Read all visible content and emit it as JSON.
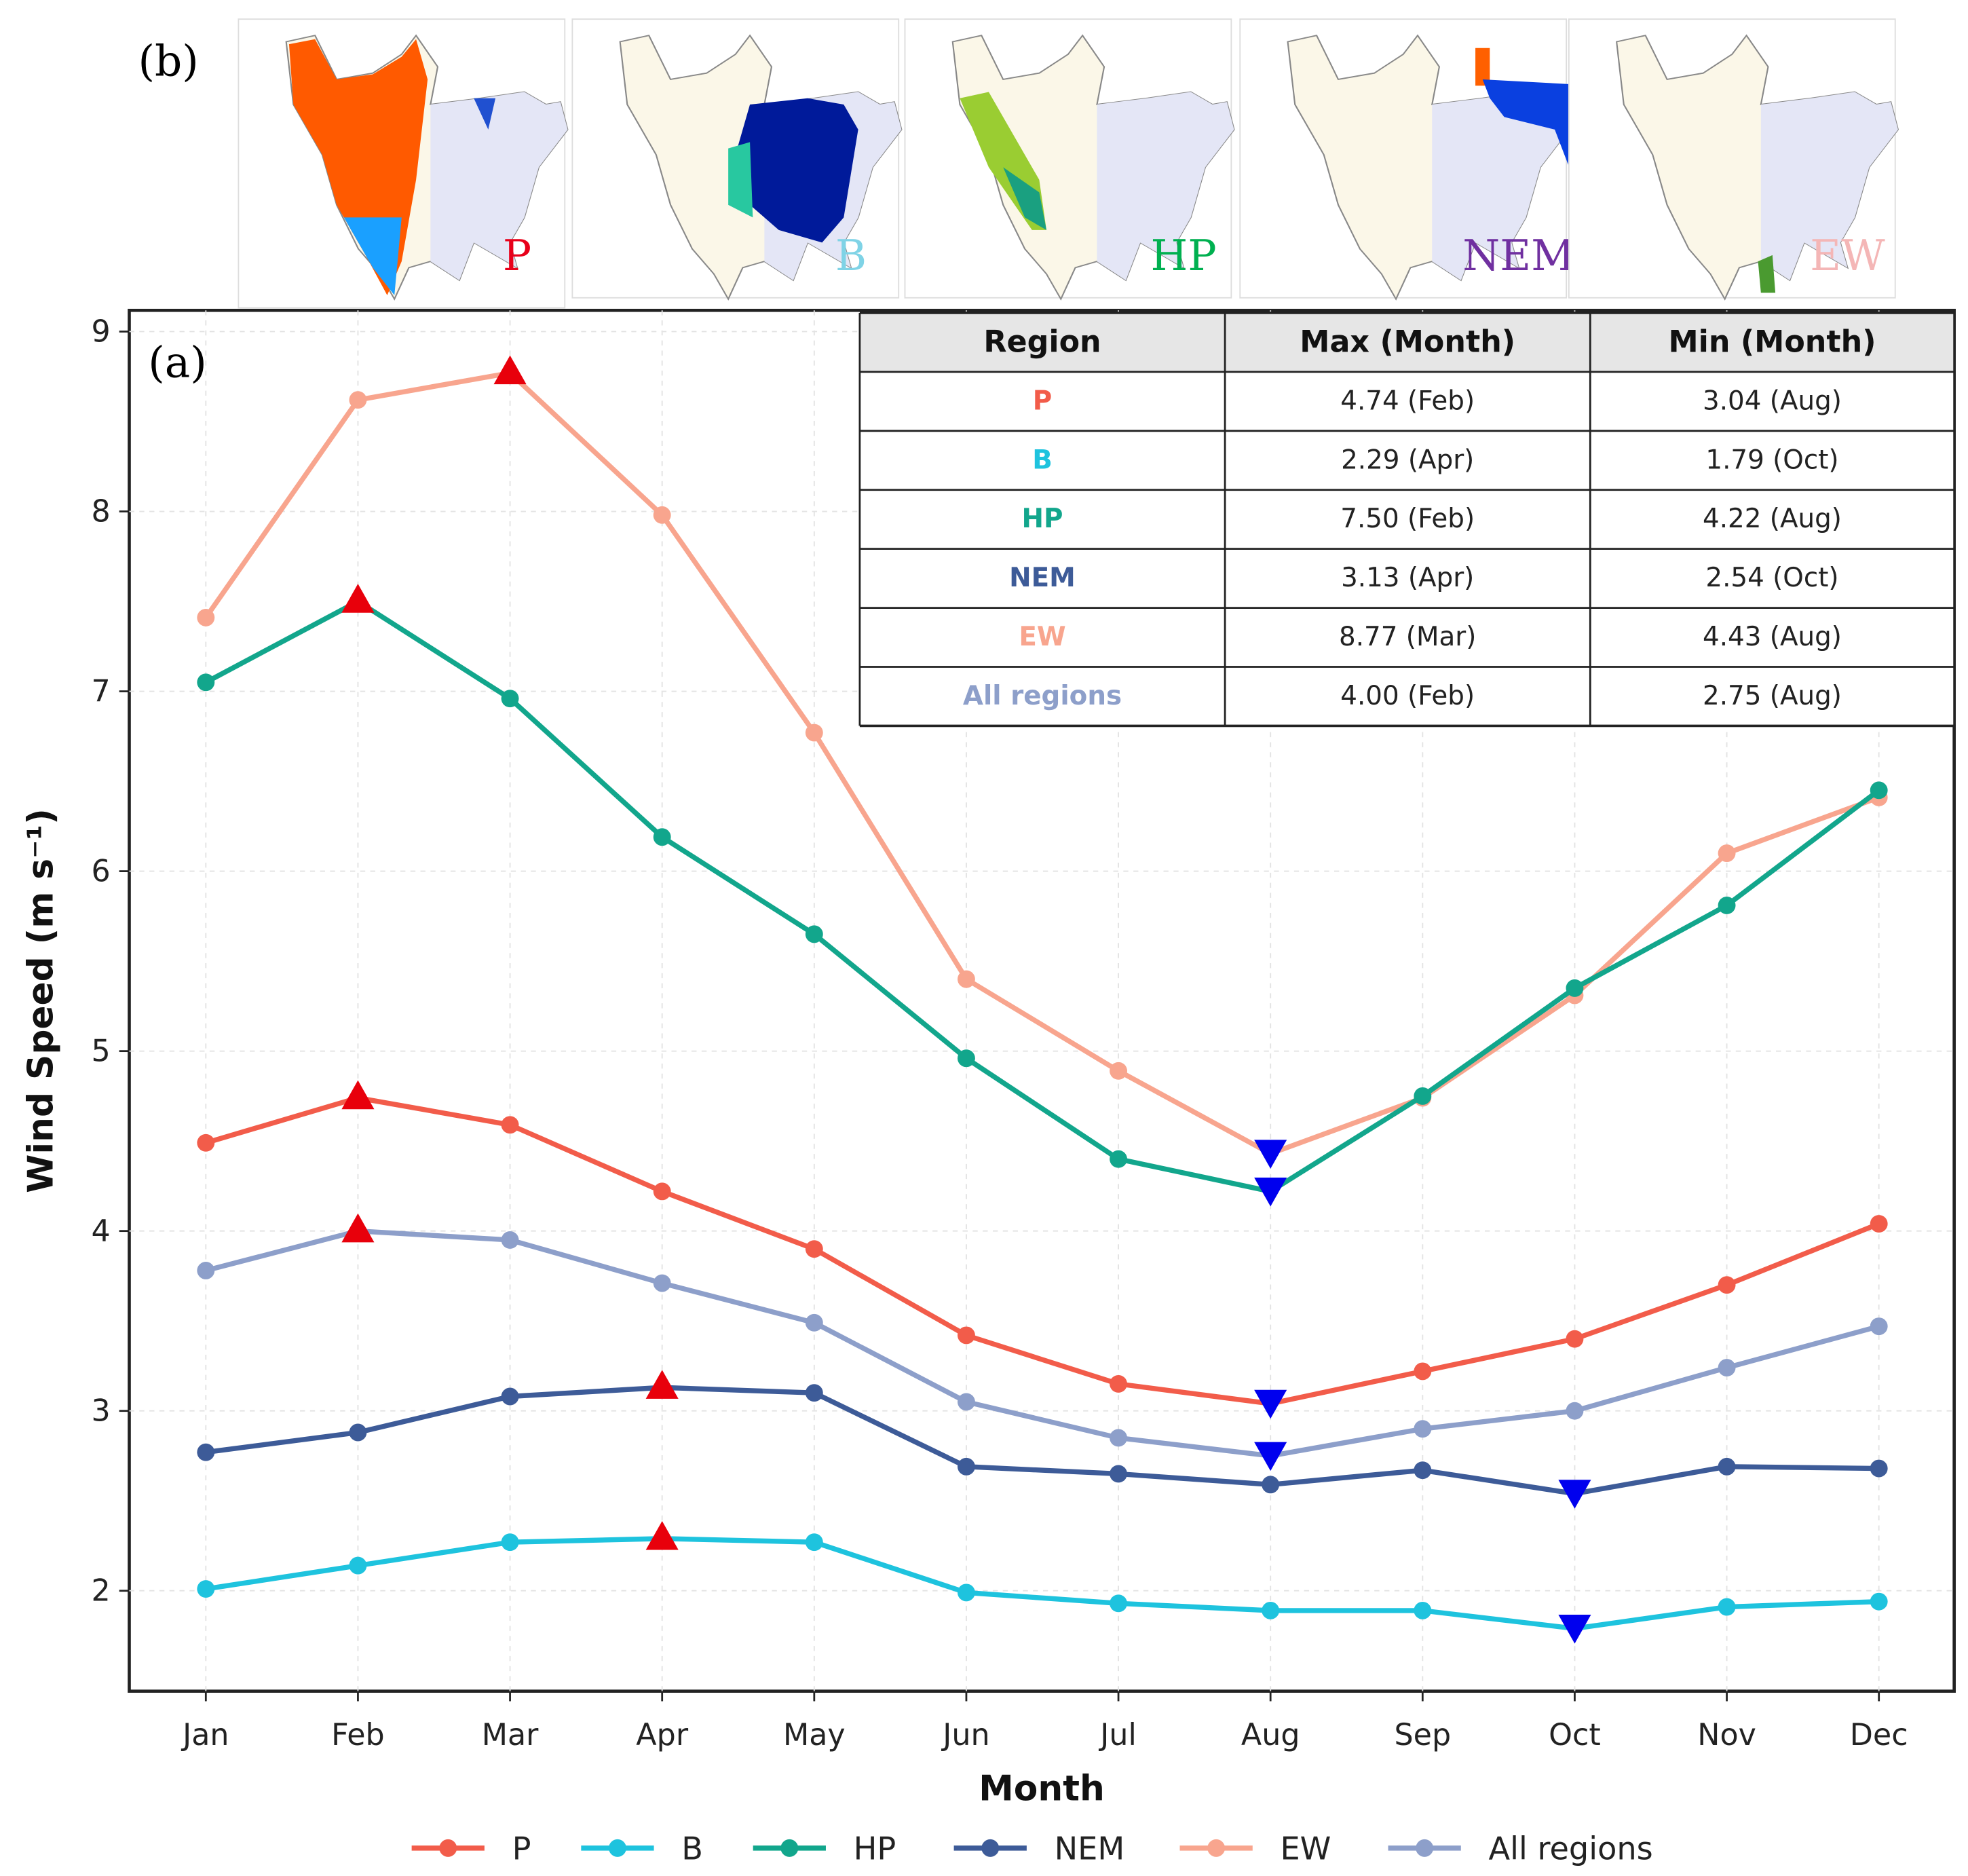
{
  "panel_labels": {
    "a": "(a)",
    "b": "(b)"
  },
  "maps": [
    {
      "label": "P",
      "color": "#e8001a"
    },
    {
      "label": "B",
      "color": "#7fd3e6"
    },
    {
      "label": "HP",
      "color": "#00b050"
    },
    {
      "label": "NEM",
      "color": "#7030a0"
    },
    {
      "label": "EW",
      "color": "#f4b6b6"
    }
  ],
  "table": {
    "headers": [
      "Region",
      "Max (Month)",
      "Min (Month)"
    ],
    "rows": [
      {
        "region": "P",
        "max": "4.74 (Feb)",
        "min": "3.04 (Aug)",
        "color": "#f25c4a"
      },
      {
        "region": "B",
        "max": "2.29 (Apr)",
        "min": "1.79 (Oct)",
        "color": "#1ec3de"
      },
      {
        "region": "HP",
        "max": "7.50 (Feb)",
        "min": "4.22 (Aug)",
        "color": "#12a68c"
      },
      {
        "region": "NEM",
        "max": "3.13 (Apr)",
        "min": "2.54 (Oct)",
        "color": "#3d5b98"
      },
      {
        "region": "EW",
        "max": "8.77 (Mar)",
        "min": "4.43 (Aug)",
        "color": "#f8a58e"
      },
      {
        "region": "All regions",
        "max": "4.00 (Feb)",
        "min": "2.75 (Aug)",
        "color": "#8d9fca"
      }
    ]
  },
  "chart_data": {
    "type": "line",
    "title": "",
    "xlabel": "Month",
    "ylabel": "Wind Speed (m s⁻¹)",
    "categories": [
      "Jan",
      "Feb",
      "Mar",
      "Apr",
      "May",
      "Jun",
      "Jul",
      "Aug",
      "Sep",
      "Oct",
      "Nov",
      "Dec"
    ],
    "ylim": [
      1.45,
      9.1
    ],
    "yticks": [
      2,
      3,
      4,
      5,
      6,
      7,
      8,
      9
    ],
    "grid": true,
    "legend_position": "bottom",
    "series": [
      {
        "name": "P",
        "color": "#f25c4a",
        "values": [
          4.49,
          4.74,
          4.59,
          4.22,
          3.9,
          3.42,
          3.15,
          3.04,
          3.22,
          3.4,
          3.7,
          4.04
        ],
        "max_index": 1,
        "min_index": 7
      },
      {
        "name": "B",
        "color": "#1ec3de",
        "values": [
          2.01,
          2.14,
          2.27,
          2.29,
          2.27,
          1.99,
          1.93,
          1.89,
          1.89,
          1.79,
          1.91,
          1.94
        ],
        "max_index": 3,
        "min_index": 9
      },
      {
        "name": "HP",
        "color": "#12a68c",
        "values": [
          7.05,
          7.5,
          6.96,
          6.19,
          5.65,
          4.96,
          4.4,
          4.22,
          4.75,
          5.35,
          5.81,
          6.45
        ],
        "max_index": 1,
        "min_index": 7
      },
      {
        "name": "NEM",
        "color": "#3d5b98",
        "values": [
          2.77,
          2.88,
          3.08,
          3.13,
          3.1,
          2.69,
          2.65,
          2.59,
          2.67,
          2.54,
          2.69,
          2.68
        ],
        "max_index": 3,
        "min_index": 9
      },
      {
        "name": "EW",
        "color": "#f8a58e",
        "values": [
          7.41,
          8.62,
          8.77,
          7.98,
          6.77,
          5.4,
          4.89,
          4.43,
          4.74,
          5.31,
          6.1,
          6.41
        ],
        "max_index": 2,
        "min_index": 7
      },
      {
        "name": "All regions",
        "color": "#8d9fca",
        "values": [
          3.78,
          4.0,
          3.95,
          3.71,
          3.49,
          3.05,
          2.85,
          2.75,
          2.9,
          3.0,
          3.24,
          3.47
        ],
        "max_index": 1,
        "min_index": 7
      }
    ],
    "max_marker_color": "#e8000b",
    "min_marker_color": "#0000ee"
  }
}
